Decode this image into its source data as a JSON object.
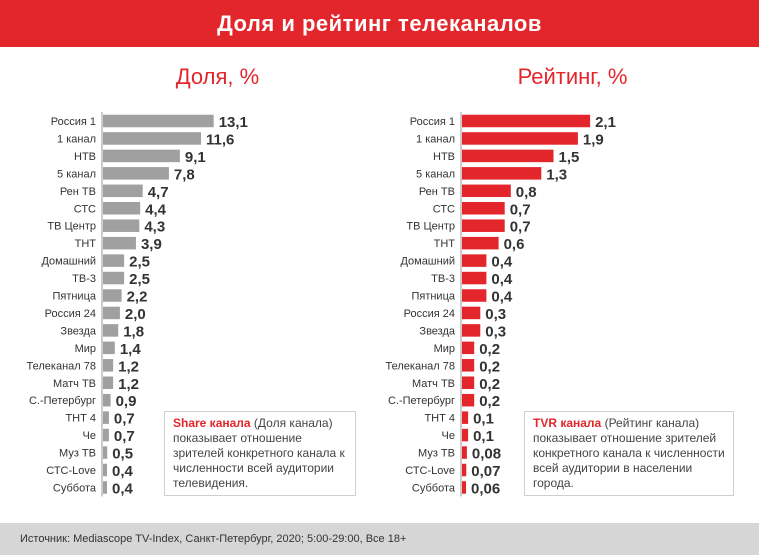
{
  "header": {
    "title": "Доля и рейтинг телеканалов"
  },
  "colors": {
    "accent": "#e3262b",
    "share_bar": "#a0a0a0",
    "rating_bar": "#e3262b",
    "footer_bg": "#d6d6d6"
  },
  "chart_data": [
    {
      "type": "bar",
      "orientation": "horizontal",
      "title": "Доля, %",
      "categories": [
        "Россия 1",
        "1 канал",
        "НТВ",
        "5 канал",
        "Рен ТВ",
        "СТС",
        "ТВ Центр",
        "ТНТ",
        "Домашний",
        "ТВ-3",
        "Пятница",
        "Россия 24",
        "Звезда",
        "Мир",
        "Телеканал 78",
        "Матч ТВ",
        "С.-Петербург",
        "ТНТ 4",
        "Че",
        "Муз ТВ",
        "СТС-Love",
        "Суббота"
      ],
      "values": [
        13.1,
        11.6,
        9.1,
        7.8,
        4.7,
        4.4,
        4.3,
        3.9,
        2.5,
        2.5,
        2.2,
        2.0,
        1.8,
        1.4,
        1.2,
        1.2,
        0.9,
        0.7,
        0.7,
        0.5,
        0.4,
        0.4
      ],
      "labels": [
        "13,1",
        "11,6",
        "9,1",
        "7,8",
        "4,7",
        "4,4",
        "4,3",
        "3,9",
        "2,5",
        "2,5",
        "2,2",
        "2,0",
        "1,8",
        "1,4",
        "1,2",
        "1,2",
        "0,9",
        "0,7",
        "0,7",
        "0,5",
        "0,4",
        "0,4"
      ],
      "color": "#a0a0a0",
      "grid": false
    },
    {
      "type": "bar",
      "orientation": "horizontal",
      "title": "Рейтинг, %",
      "categories": [
        "Россия 1",
        "1 канал",
        "НТВ",
        "5 канал",
        "Рен ТВ",
        "СТС",
        "ТВ Центр",
        "ТНТ",
        "Домашний",
        "ТВ-3",
        "Пятница",
        "Россия 24",
        "Звезда",
        "Мир",
        "Телеканал 78",
        "Матч ТВ",
        "С.-Петербург",
        "ТНТ 4",
        "Че",
        "Муз ТВ",
        "СТС-Love",
        "Суббота"
      ],
      "values": [
        2.1,
        1.9,
        1.5,
        1.3,
        0.8,
        0.7,
        0.7,
        0.6,
        0.4,
        0.4,
        0.4,
        0.3,
        0.3,
        0.2,
        0.2,
        0.2,
        0.2,
        0.1,
        0.1,
        0.08,
        0.07,
        0.06
      ],
      "labels": [
        "2,1",
        "1,9",
        "1,5",
        "1,3",
        "0,8",
        "0,7",
        "0,7",
        "0,6",
        "0,4",
        "0,4",
        "0,4",
        "0,3",
        "0,3",
        "0,2",
        "0,2",
        "0,2",
        "0,2",
        "0,1",
        "0,1",
        "0,08",
        "0,07",
        "0,06"
      ],
      "color": "#e3262b",
      "grid": false
    }
  ],
  "notes": {
    "share": {
      "term": "Share канала",
      "rest": " (Доля канала) показывает отношение зрителей конкретного канала к численности всей аудитории телевидения."
    },
    "rating": {
      "term": "TVR канала",
      "rest": " (Рейтинг канала) показывает отношение зрителей конкретного канала к численности всей аудитории в населении города."
    }
  },
  "footer": {
    "source": "Источник: Mediascope TV-Index, Санкт-Петербург, 2020; 5:00-29:00, Все 18+"
  }
}
